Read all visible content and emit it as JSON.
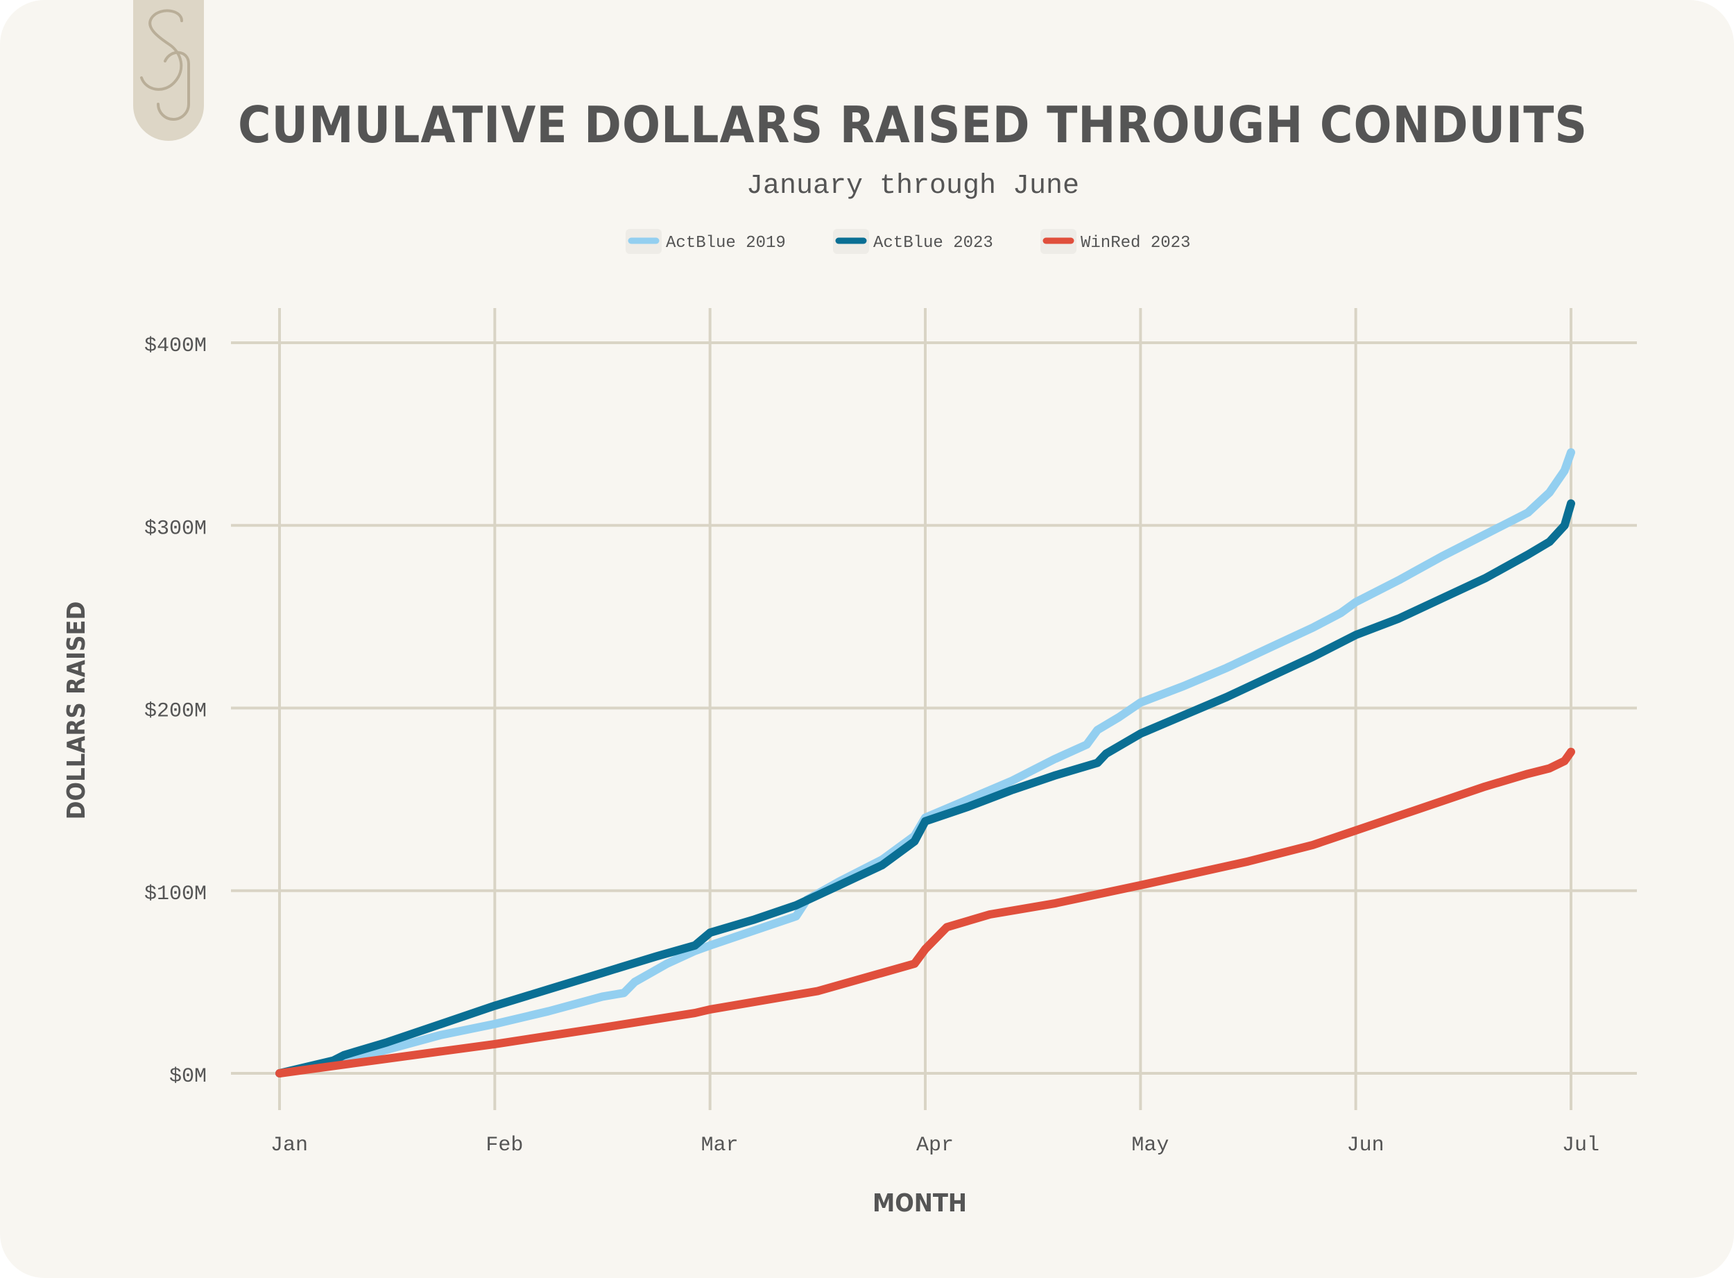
{
  "logo": {
    "icon": "monogram-logo-icon"
  },
  "colors": {
    "background": "#f8f6f1",
    "grid": "#d9d4c5",
    "text": "#555555",
    "actblue2019": "#93cff0",
    "actblue2023": "#0a6f94",
    "winred2023": "#e04f3c",
    "logo_bg": "#ddd6c6",
    "logo_fg": "#b9ae98"
  },
  "chart_data": {
    "type": "line",
    "title": "CUMULATIVE DOLLARS RAISED THROUGH CONDUITS",
    "subtitle": "January through June",
    "xlabel": "MONTH",
    "ylabel": "DOLLARS RAISED",
    "x_ticks": [
      "Jan",
      "Feb",
      "Mar",
      "Apr",
      "May",
      "Jun",
      "Jul"
    ],
    "y_ticks": [
      "$0M",
      "$100M",
      "$200M",
      "$300M",
      "$400M"
    ],
    "ylim": [
      0,
      400
    ],
    "xlim": [
      0,
      6
    ],
    "grid": true,
    "legend_position": "top-center",
    "x_unit": "months since Jan 1",
    "y_unit": "millions of dollars",
    "series": [
      {
        "name": "ActBlue 2019",
        "color": "#93cff0",
        "x": [
          0,
          0.25,
          0.5,
          0.75,
          1.0,
          1.25,
          1.5,
          1.6,
          1.65,
          1.8,
          1.93,
          2.0,
          2.2,
          2.4,
          2.45,
          2.6,
          2.8,
          2.95,
          3.0,
          3.2,
          3.4,
          3.6,
          3.75,
          3.8,
          3.9,
          4.0,
          4.2,
          4.4,
          4.6,
          4.8,
          4.93,
          5.0,
          5.2,
          5.4,
          5.6,
          5.8,
          5.9,
          5.97,
          6.0
        ],
        "y": [
          0,
          5,
          13,
          21,
          27,
          34,
          42,
          44,
          50,
          60,
          67,
          70,
          78,
          86,
          95,
          105,
          117,
          130,
          140,
          150,
          160,
          172,
          180,
          188,
          195,
          203,
          212,
          222,
          233,
          244,
          252,
          258,
          270,
          283,
          295,
          307,
          318,
          330,
          340
        ]
      },
      {
        "name": "ActBlue 2023",
        "color": "#0a6f94",
        "x": [
          0,
          0.25,
          0.3,
          0.5,
          0.75,
          1.0,
          1.25,
          1.5,
          1.75,
          1.93,
          2.0,
          2.2,
          2.4,
          2.6,
          2.8,
          2.95,
          3.0,
          3.2,
          3.4,
          3.6,
          3.8,
          3.84,
          4.0,
          4.2,
          4.4,
          4.6,
          4.8,
          5.0,
          5.2,
          5.4,
          5.6,
          5.8,
          5.9,
          5.97,
          6.0
        ],
        "y": [
          0,
          7,
          10,
          17,
          27,
          37,
          46,
          55,
          64,
          70,
          77,
          84,
          92,
          103,
          114,
          127,
          138,
          146,
          155,
          163,
          170,
          175,
          186,
          196,
          206,
          217,
          228,
          240,
          249,
          260,
          271,
          284,
          291,
          300,
          312
        ]
      },
      {
        "name": "WinRed 2023",
        "color": "#e04f3c",
        "x": [
          0,
          0.5,
          1.0,
          1.5,
          1.93,
          2.0,
          2.5,
          2.95,
          3.0,
          3.1,
          3.3,
          3.6,
          4.0,
          4.5,
          4.8,
          5.0,
          5.3,
          5.6,
          5.8,
          5.9,
          5.97,
          6.0
        ],
        "y": [
          0,
          8,
          16,
          25,
          33,
          35,
          45,
          60,
          68,
          80,
          87,
          93,
          103,
          116,
          125,
          133,
          145,
          157,
          164,
          167,
          171,
          176
        ]
      }
    ]
  }
}
